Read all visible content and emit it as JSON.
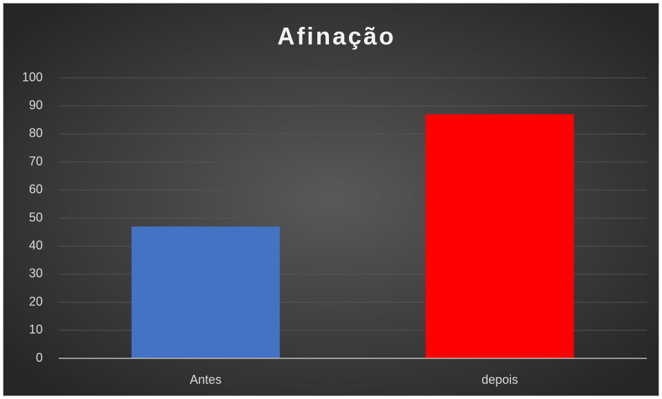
{
  "chart_data": {
    "type": "bar",
    "title": "Afinação",
    "categories": [
      "Antes",
      "depois"
    ],
    "values": [
      47,
      87
    ],
    "colors": [
      "#4472c4",
      "#ff0000"
    ],
    "ylim": [
      0,
      100
    ],
    "yticks": [
      0,
      10,
      20,
      30,
      40,
      50,
      60,
      70,
      80,
      90,
      100
    ],
    "grid": true
  }
}
